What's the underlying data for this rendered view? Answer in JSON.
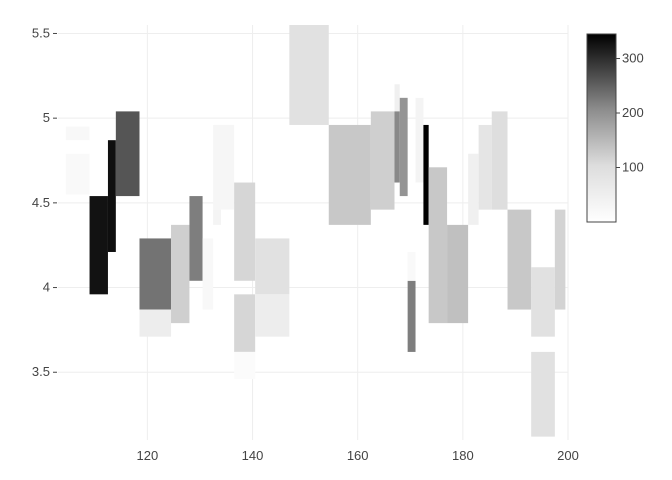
{
  "chart_data": {
    "type": "heatmap",
    "title": "",
    "xlabel": "",
    "ylabel": "",
    "xlim": [
      103,
      200
    ],
    "ylim": [
      3.1,
      5.55
    ],
    "x_ticks": [
      "120",
      "140",
      "160",
      "180",
      "200"
    ],
    "y_ticks": [
      "3.5",
      "4",
      "4.5",
      "5",
      "5.5"
    ],
    "grid": true,
    "colorscale": {
      "min": 0,
      "max": 345,
      "low_color": "#ffffff",
      "high_color": "#000000",
      "ticks": [
        "100",
        "200",
        "300"
      ]
    },
    "tiles": [
      {
        "x0": 104.5,
        "x1": 109.0,
        "y0": 4.87,
        "y1": 4.95,
        "value": 10
      },
      {
        "x0": 104.5,
        "x1": 109.0,
        "y0": 4.55,
        "y1": 4.79,
        "value": 8
      },
      {
        "x0": 109.0,
        "x1": 112.5,
        "y0": 3.96,
        "y1": 4.54,
        "value": 320
      },
      {
        "x0": 112.5,
        "x1": 114.0,
        "y0": 4.21,
        "y1": 4.87,
        "value": 325
      },
      {
        "x0": 114.0,
        "x1": 118.5,
        "y0": 4.54,
        "y1": 5.04,
        "value": 230
      },
      {
        "x0": 118.5,
        "x1": 124.5,
        "y0": 3.87,
        "y1": 4.29,
        "value": 190
      },
      {
        "x0": 118.5,
        "x1": 124.5,
        "y0": 3.71,
        "y1": 3.87,
        "value": 25
      },
      {
        "x0": 124.5,
        "x1": 128.0,
        "y0": 3.79,
        "y1": 4.37,
        "value": 65
      },
      {
        "x0": 128.0,
        "x1": 130.5,
        "y0": 4.04,
        "y1": 4.54,
        "value": 175
      },
      {
        "x0": 130.5,
        "x1": 132.5,
        "y0": 3.87,
        "y1": 4.29,
        "value": 10
      },
      {
        "x0": 132.5,
        "x1": 136.5,
        "y0": 4.46,
        "y1": 4.96,
        "value": 12
      },
      {
        "x0": 132.5,
        "x1": 134.0,
        "y0": 4.37,
        "y1": 4.46,
        "value": 15
      },
      {
        "x0": 136.5,
        "x1": 140.5,
        "y0": 4.04,
        "y1": 4.62,
        "value": 55
      },
      {
        "x0": 136.5,
        "x1": 140.5,
        "y0": 3.62,
        "y1": 3.96,
        "value": 55
      },
      {
        "x0": 136.5,
        "x1": 140.5,
        "y0": 3.46,
        "y1": 3.62,
        "value": 5
      },
      {
        "x0": 140.5,
        "x1": 147.0,
        "y0": 3.96,
        "y1": 4.29,
        "value": 40
      },
      {
        "x0": 140.5,
        "x1": 147.0,
        "y0": 3.71,
        "y1": 3.96,
        "value": 25
      },
      {
        "x0": 147.0,
        "x1": 154.5,
        "y0": 4.96,
        "y1": 5.55,
        "value": 40
      },
      {
        "x0": 154.5,
        "x1": 162.5,
        "y0": 4.37,
        "y1": 4.96,
        "value": 75
      },
      {
        "x0": 162.5,
        "x1": 167.0,
        "y0": 4.46,
        "y1": 5.04,
        "value": 65
      },
      {
        "x0": 167.0,
        "x1": 168.0,
        "y0": 5.04,
        "y1": 5.2,
        "value": 20
      },
      {
        "x0": 167.0,
        "x1": 168.0,
        "y0": 4.62,
        "y1": 5.04,
        "value": 160
      },
      {
        "x0": 168.0,
        "x1": 169.5,
        "y0": 4.54,
        "y1": 5.12,
        "value": 145
      },
      {
        "x0": 169.5,
        "x1": 171.0,
        "y0": 3.62,
        "y1": 4.04,
        "value": 175
      },
      {
        "x0": 169.5,
        "x1": 171.0,
        "y0": 4.04,
        "y1": 4.21,
        "value": 8
      },
      {
        "x0": 171.0,
        "x1": 172.5,
        "y0": 4.62,
        "y1": 5.12,
        "value": 15
      },
      {
        "x0": 172.5,
        "x1": 173.5,
        "y0": 4.37,
        "y1": 4.96,
        "value": 345
      },
      {
        "x0": 173.5,
        "x1": 177.0,
        "y0": 3.79,
        "y1": 4.71,
        "value": 75
      },
      {
        "x0": 177.0,
        "x1": 181.0,
        "y0": 3.79,
        "y1": 4.37,
        "value": 85
      },
      {
        "x0": 181.0,
        "x1": 183.0,
        "y0": 4.37,
        "y1": 4.79,
        "value": 20
      },
      {
        "x0": 183.0,
        "x1": 185.5,
        "y0": 4.46,
        "y1": 4.96,
        "value": 35
      },
      {
        "x0": 185.5,
        "x1": 188.5,
        "y0": 4.46,
        "y1": 5.04,
        "value": 45
      },
      {
        "x0": 188.5,
        "x1": 193.0,
        "y0": 3.87,
        "y1": 4.46,
        "value": 75
      },
      {
        "x0": 193.0,
        "x1": 197.5,
        "y0": 3.71,
        "y1": 4.12,
        "value": 40
      },
      {
        "x0": 193.0,
        "x1": 197.5,
        "y0": 3.12,
        "y1": 3.62,
        "value": 40
      },
      {
        "x0": 197.5,
        "x1": 199.5,
        "y0": 3.87,
        "y1": 4.46,
        "value": 60
      }
    ]
  }
}
